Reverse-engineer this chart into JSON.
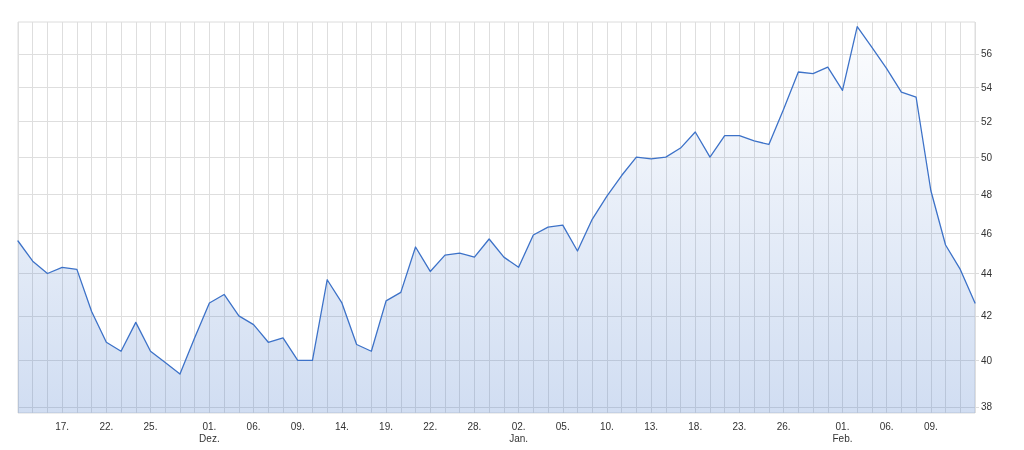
{
  "chart_data": {
    "type": "area",
    "categories": [
      null,
      null,
      null,
      "17.",
      null,
      null,
      "22.",
      null,
      null,
      "25.",
      null,
      null,
      null,
      "01.\nDez.",
      null,
      null,
      "06.",
      null,
      null,
      "09.",
      null,
      null,
      "14.",
      null,
      null,
      "19.",
      null,
      null,
      "22.",
      null,
      null,
      "28.",
      null,
      null,
      "02.\nJan.",
      null,
      null,
      "05.",
      null,
      null,
      "10.",
      null,
      null,
      "13.",
      null,
      null,
      "18.",
      null,
      null,
      "23.",
      null,
      null,
      "26.",
      null,
      null,
      null,
      "01.\nFeb.",
      null,
      null,
      "06.",
      null,
      null,
      "09.",
      null,
      null,
      null
    ],
    "values": [
      45.6,
      44.6,
      44.0,
      44.3,
      44.2,
      42.2,
      40.8,
      40.4,
      41.7,
      40.4,
      39.9,
      39.4,
      41.0,
      42.6,
      43.0,
      42.0,
      41.6,
      40.8,
      41.0,
      40.0,
      40.0,
      43.7,
      42.6,
      40.7,
      40.4,
      42.7,
      43.1,
      45.3,
      44.1,
      44.9,
      45.0,
      44.8,
      45.7,
      44.8,
      44.3,
      45.9,
      46.3,
      46.4,
      45.1,
      46.7,
      47.9,
      49.0,
      50.0,
      49.9,
      50.0,
      50.5,
      51.4,
      50.0,
      51.2,
      51.2,
      50.9,
      50.7,
      52.7,
      54.9,
      54.8,
      55.2,
      53.8,
      57.7,
      56.4,
      55.1,
      53.7,
      53.4,
      48.2,
      45.4,
      44.2,
      42.6
    ],
    "color": "#3d72c8",
    "ylim": [
      37.75,
      58
    ],
    "yticks": [
      38,
      40,
      42,
      44,
      46,
      48,
      50,
      52,
      54,
      56
    ],
    "log": true,
    "grid": true
  }
}
